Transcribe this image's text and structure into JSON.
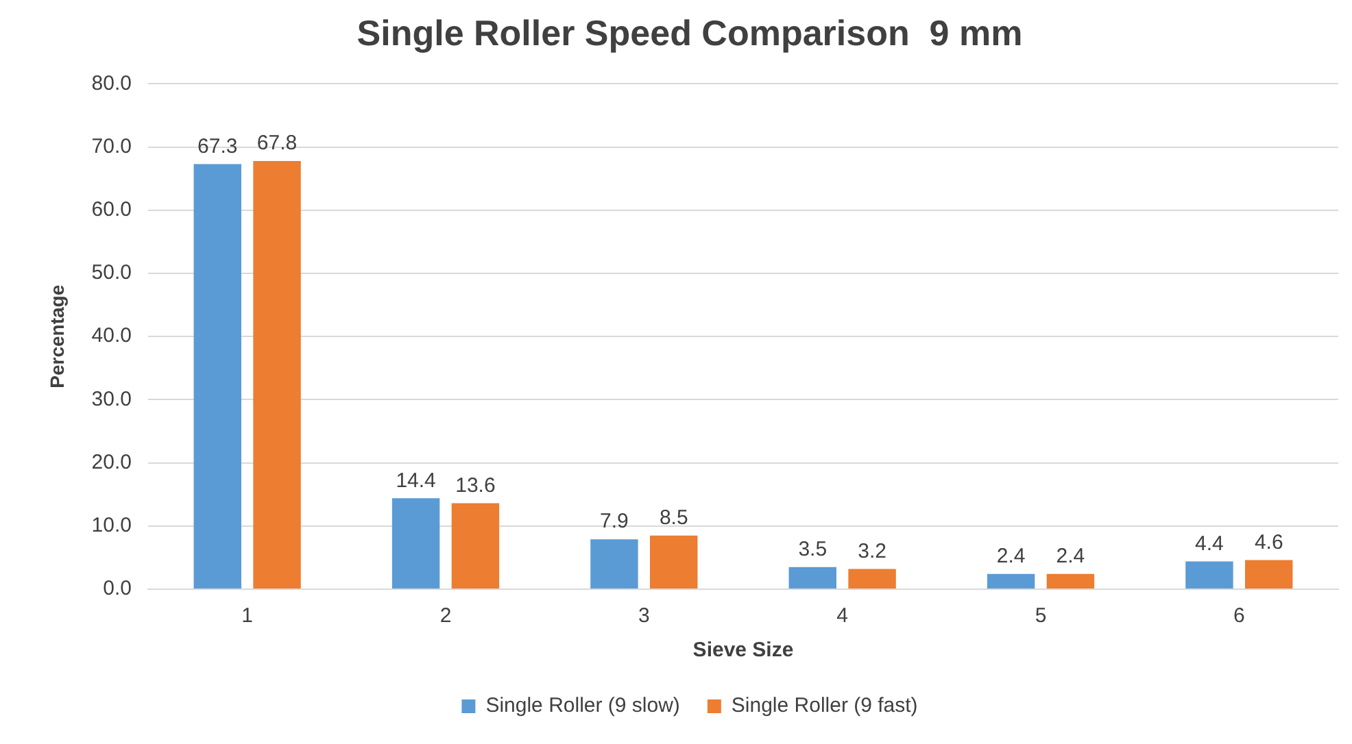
{
  "chart_data": {
    "type": "bar",
    "title": "Single Roller Speed Comparison  9 mm",
    "xlabel": "Sieve Size",
    "ylabel": "Percentage",
    "categories": [
      "1",
      "2",
      "3",
      "4",
      "5",
      "6"
    ],
    "series": [
      {
        "name": "Single Roller (9 slow)",
        "color": "#5b9bd5",
        "values": [
          67.3,
          14.4,
          7.9,
          3.5,
          2.4,
          4.4
        ]
      },
      {
        "name": "Single Roller (9 fast)",
        "color": "#ed7d31",
        "values": [
          67.8,
          13.6,
          8.5,
          3.2,
          2.4,
          4.6
        ]
      }
    ],
    "ylim": [
      0,
      80
    ],
    "yticks": [
      {
        "value": 0,
        "label": "0.0"
      },
      {
        "value": 10,
        "label": "10.0"
      },
      {
        "value": 20,
        "label": "20.0"
      },
      {
        "value": 30,
        "label": "30.0"
      },
      {
        "value": 40,
        "label": "40.0"
      },
      {
        "value": 50,
        "label": "50.0"
      },
      {
        "value": 60,
        "label": "60.0"
      },
      {
        "value": 70,
        "label": "70.0"
      },
      {
        "value": 80,
        "label": "80.0"
      }
    ],
    "grid": "y",
    "legend": "bottom",
    "data_labels": true
  }
}
